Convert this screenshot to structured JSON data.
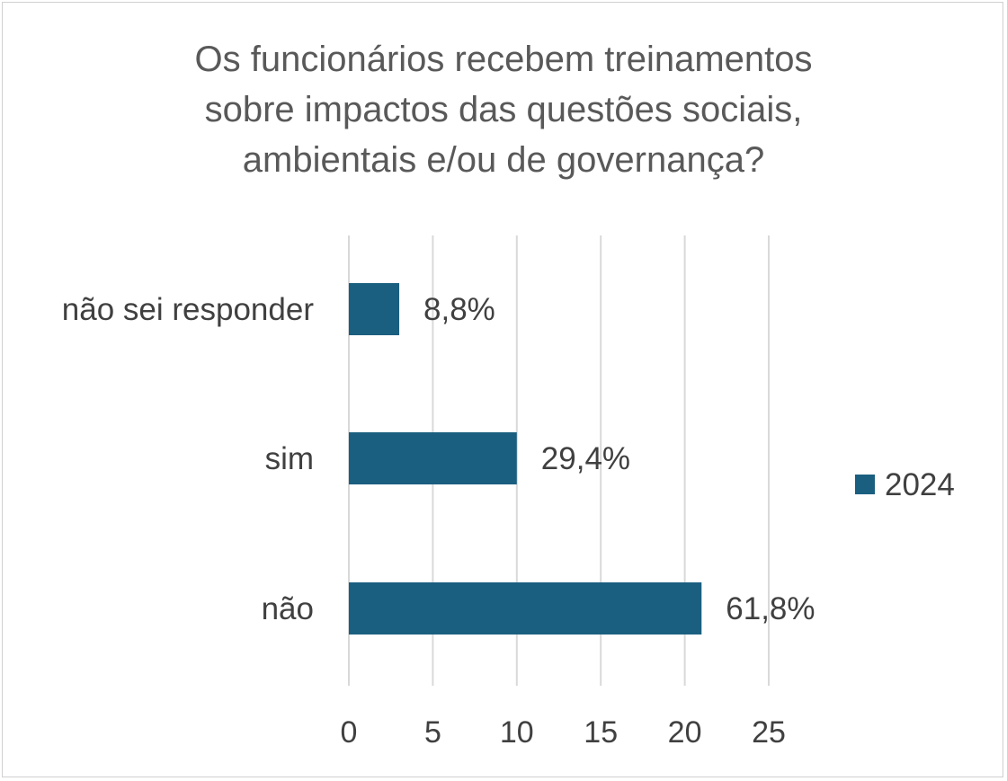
{
  "chart_data": {
    "type": "bar",
    "orientation": "horizontal",
    "title_lines": [
      "Os funcionários recebem treinamentos",
      "sobre impactos das questões sociais,",
      "ambientais e/ou de governança?"
    ],
    "categories": [
      "não sei responder",
      "sim",
      "não"
    ],
    "series": [
      {
        "name": "2024",
        "values": [
          3,
          10,
          21
        ],
        "labels": [
          "8,8%",
          "29,4%",
          "61,8%"
        ]
      }
    ],
    "xlim": [
      0,
      25
    ],
    "xticks": [
      "0",
      "5",
      "10",
      "15",
      "20",
      "25"
    ],
    "grid": true,
    "legend_position": "right",
    "colors": {
      "bar": "#1B5F80",
      "grid": "#d9d9d9",
      "text": "#404040",
      "title": "#595959"
    }
  }
}
